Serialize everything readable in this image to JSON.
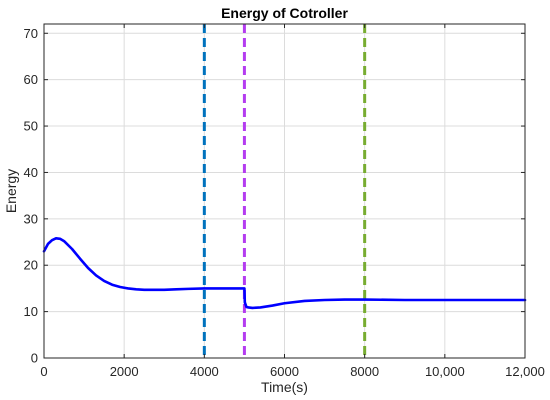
{
  "chart_data": {
    "type": "line",
    "title": "Energy of Cotroller",
    "xlabel": "Time(s)",
    "ylabel": "Energy",
    "xlim": [
      0,
      12000
    ],
    "ylim": [
      0,
      72
    ],
    "xticks": [
      0,
      2000,
      4000,
      6000,
      8000,
      10000,
      12000
    ],
    "xtick_labels": [
      "0",
      "2000",
      "4000",
      "6000",
      "8000",
      "10,000",
      "12,000"
    ],
    "yticks": [
      0,
      10,
      20,
      30,
      40,
      50,
      60,
      70
    ],
    "ytick_labels": [
      "0",
      "10",
      "20",
      "30",
      "40",
      "50",
      "60",
      "70"
    ],
    "grid": true,
    "series": [
      {
        "color": "#0000ff",
        "x": [
          0,
          50,
          100,
          200,
          300,
          400,
          500,
          700,
          900,
          1100,
          1300,
          1500,
          1700,
          1900,
          2100,
          2300,
          2500,
          2700,
          3000,
          3300,
          3600,
          4000,
          4500,
          5000,
          5010,
          5050,
          5100,
          5200,
          5400,
          5700,
          6000,
          6500,
          7000,
          7500,
          8000,
          9000,
          10000,
          11000,
          12000
        ],
        "y": [
          23.0,
          23.8,
          24.6,
          25.4,
          25.8,
          25.7,
          25.2,
          23.5,
          21.4,
          19.4,
          17.8,
          16.6,
          15.8,
          15.3,
          15.0,
          14.8,
          14.7,
          14.7,
          14.7,
          14.8,
          14.9,
          15.0,
          15.0,
          15.0,
          12.0,
          11.0,
          10.9,
          10.8,
          10.9,
          11.3,
          11.8,
          12.3,
          12.5,
          12.6,
          12.6,
          12.5,
          12.5,
          12.5,
          12.5
        ]
      }
    ],
    "vertical_lines": [
      {
        "x": 4000,
        "color": "#0072bd",
        "style": "dashed"
      },
      {
        "x": 5000,
        "color": "#b43cf0",
        "style": "dashed"
      },
      {
        "x": 8000,
        "color": "#77ac30",
        "style": "dashed"
      }
    ]
  }
}
